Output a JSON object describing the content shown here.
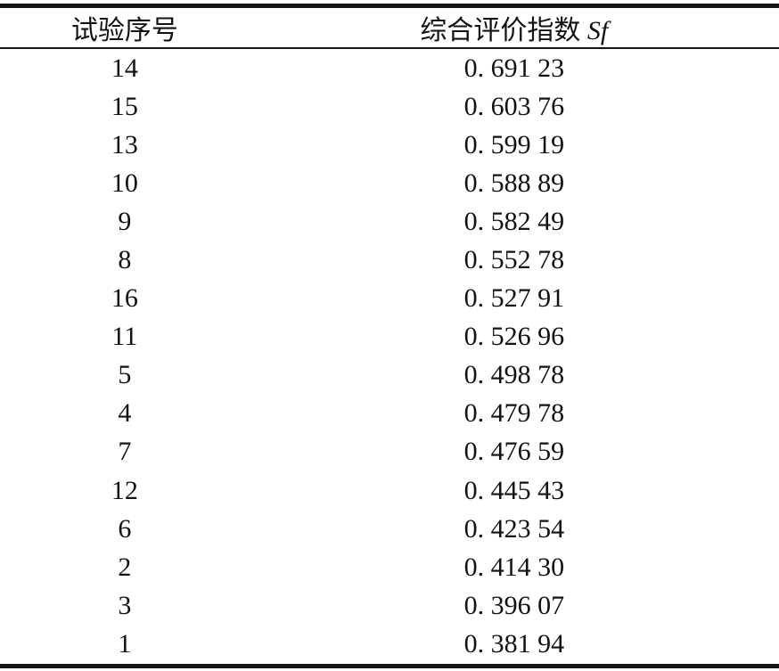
{
  "table": {
    "columns": [
      {
        "key": "test_no",
        "label": "试验序号"
      },
      {
        "key": "sf",
        "label": "综合评价指数",
        "symbol": "Sf"
      }
    ],
    "rows": [
      {
        "test_no": "14",
        "sf": "0. 691 23"
      },
      {
        "test_no": "15",
        "sf": "0. 603 76"
      },
      {
        "test_no": "13",
        "sf": "0. 599 19"
      },
      {
        "test_no": "10",
        "sf": "0. 588 89"
      },
      {
        "test_no": "9",
        "sf": "0. 582 49"
      },
      {
        "test_no": "8",
        "sf": "0. 552 78"
      },
      {
        "test_no": "16",
        "sf": "0. 527 91"
      },
      {
        "test_no": "11",
        "sf": "0. 526 96"
      },
      {
        "test_no": "5",
        "sf": "0. 498 78"
      },
      {
        "test_no": "4",
        "sf": "0. 479 78"
      },
      {
        "test_no": "7",
        "sf": "0. 476 59"
      },
      {
        "test_no": "12",
        "sf": "0. 445 43"
      },
      {
        "test_no": "6",
        "sf": "0. 423 54"
      },
      {
        "test_no": "2",
        "sf": "0. 414 30"
      },
      {
        "test_no": "3",
        "sf": "0. 396 07"
      },
      {
        "test_no": "1",
        "sf": "0. 381 94"
      }
    ]
  },
  "colors": {
    "text": "#121212",
    "rule": "#141414",
    "background": "#ffffff"
  }
}
